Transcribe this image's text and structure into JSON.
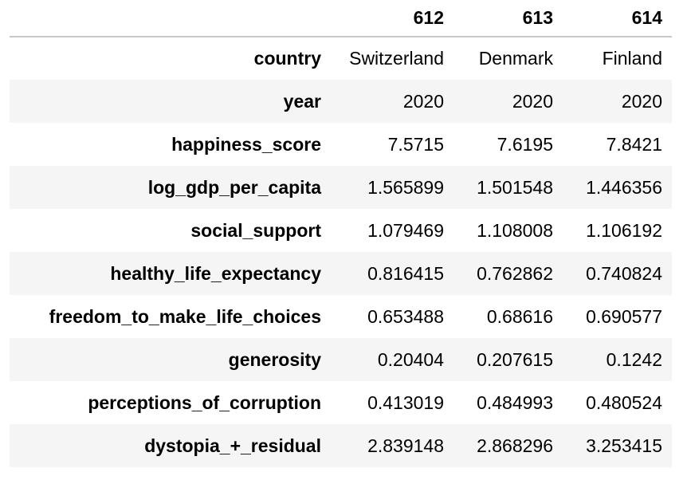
{
  "table": {
    "columns": [
      "612",
      "613",
      "614"
    ],
    "rows": [
      {
        "label": "country",
        "values": [
          "Switzerland",
          "Denmark",
          "Finland"
        ]
      },
      {
        "label": "year",
        "values": [
          "2020",
          "2020",
          "2020"
        ]
      },
      {
        "label": "happiness_score",
        "values": [
          "7.5715",
          "7.6195",
          "7.8421"
        ]
      },
      {
        "label": "log_gdp_per_capita",
        "values": [
          "1.565899",
          "1.501548",
          "1.446356"
        ]
      },
      {
        "label": "social_support",
        "values": [
          "1.079469",
          "1.108008",
          "1.106192"
        ]
      },
      {
        "label": "healthy_life_expectancy",
        "values": [
          "0.816415",
          "0.762862",
          "0.740824"
        ]
      },
      {
        "label": "freedom_to_make_life_choices",
        "values": [
          "0.653488",
          "0.68616",
          "0.690577"
        ]
      },
      {
        "label": "generosity",
        "values": [
          "0.20404",
          "0.207615",
          "0.1242"
        ]
      },
      {
        "label": "perceptions_of_corruption",
        "values": [
          "0.413019",
          "0.484993",
          "0.480524"
        ]
      },
      {
        "label": "dystopia_+_residual",
        "values": [
          "2.839148",
          "2.868296",
          "3.253415"
        ]
      }
    ]
  },
  "colors": {
    "striped_row_background": "#f5f5f5",
    "header_rule": "#c8c8c8",
    "text": "#000000"
  }
}
